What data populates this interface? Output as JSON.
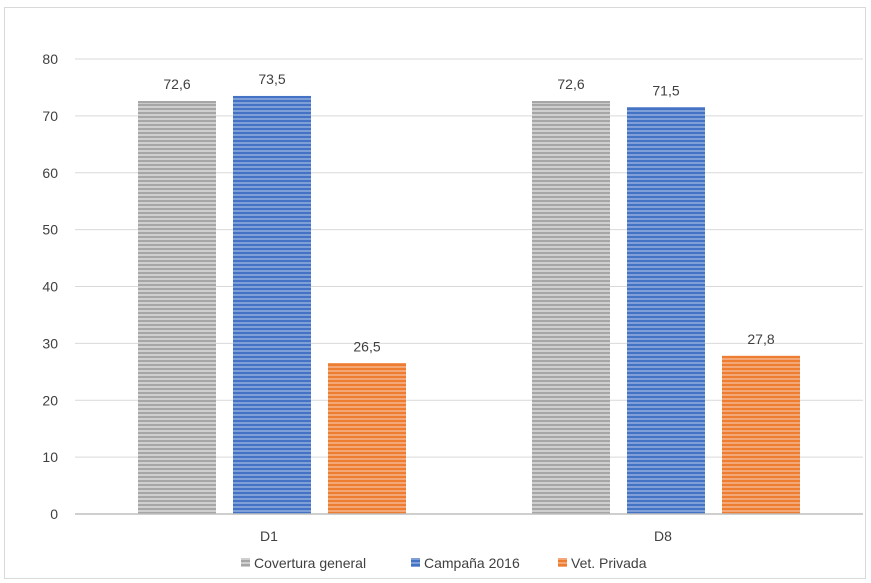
{
  "chart_data": {
    "type": "bar",
    "categories": [
      "D1",
      "D8"
    ],
    "series": [
      {
        "name": "Covertura general",
        "values": [
          72.6,
          72.6
        ],
        "color": "#a6a6a6",
        "labels": [
          "72,6",
          "72,6"
        ]
      },
      {
        "name": "Campaña 2016",
        "values": [
          73.5,
          71.5
        ],
        "color": "#4472c4",
        "labels": [
          "73,5",
          "71,5"
        ]
      },
      {
        "name": "Vet. Privada",
        "values": [
          26.5,
          27.8
        ],
        "color": "#ed7d31",
        "labels": [
          "26,5",
          "27,8"
        ]
      }
    ],
    "title": "",
    "xlabel": "",
    "ylabel": "",
    "ylim": [
      0,
      80
    ],
    "yticks": [
      0,
      10,
      20,
      30,
      40,
      50,
      60,
      70,
      80
    ],
    "grid": true,
    "legend": "bottom"
  }
}
